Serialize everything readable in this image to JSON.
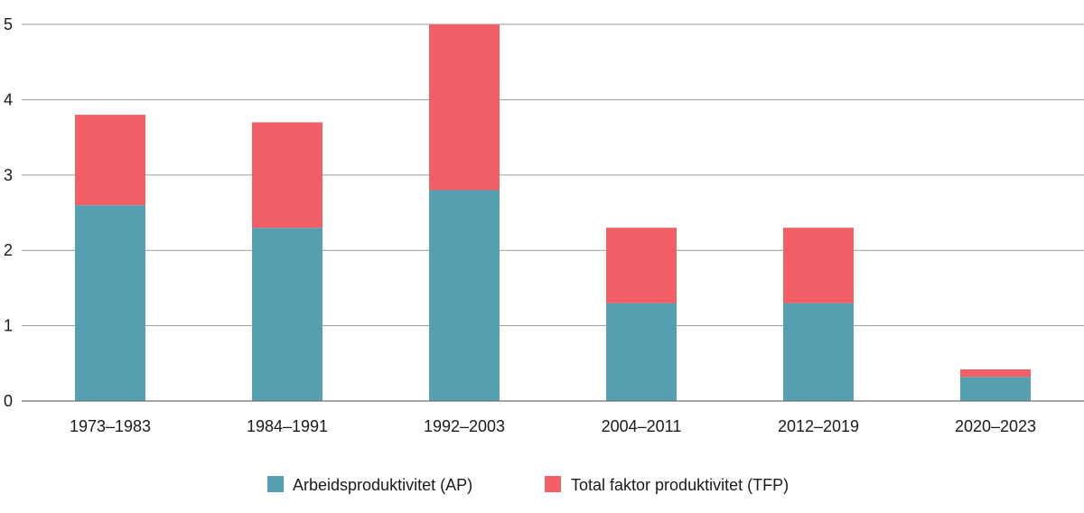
{
  "chart_data": {
    "type": "bar",
    "stacked": true,
    "categories": [
      "1973–1983",
      "1984–1991",
      "1992–2003",
      "2004–2011",
      "2012–2019",
      "2020–2023"
    ],
    "series": [
      {
        "name": "Arbeidsproduktivitet (AP)",
        "color": "#569fb0",
        "values": [
          2.6,
          2.3,
          2.8,
          1.3,
          1.3,
          0.32
        ]
      },
      {
        "name": "Total faktor produktivitet (TFP)",
        "color": "#f05f65",
        "values": [
          1.2,
          1.4,
          2.2,
          1.0,
          1.0,
          0.1
        ]
      }
    ],
    "y_ticks": [
      "0",
      "1",
      "2",
      "3",
      "4",
      "5"
    ],
    "ylim": [
      0,
      5
    ],
    "grid": true,
    "legend_position": "bottom-center",
    "title": "",
    "xlabel": "",
    "ylabel": ""
  }
}
